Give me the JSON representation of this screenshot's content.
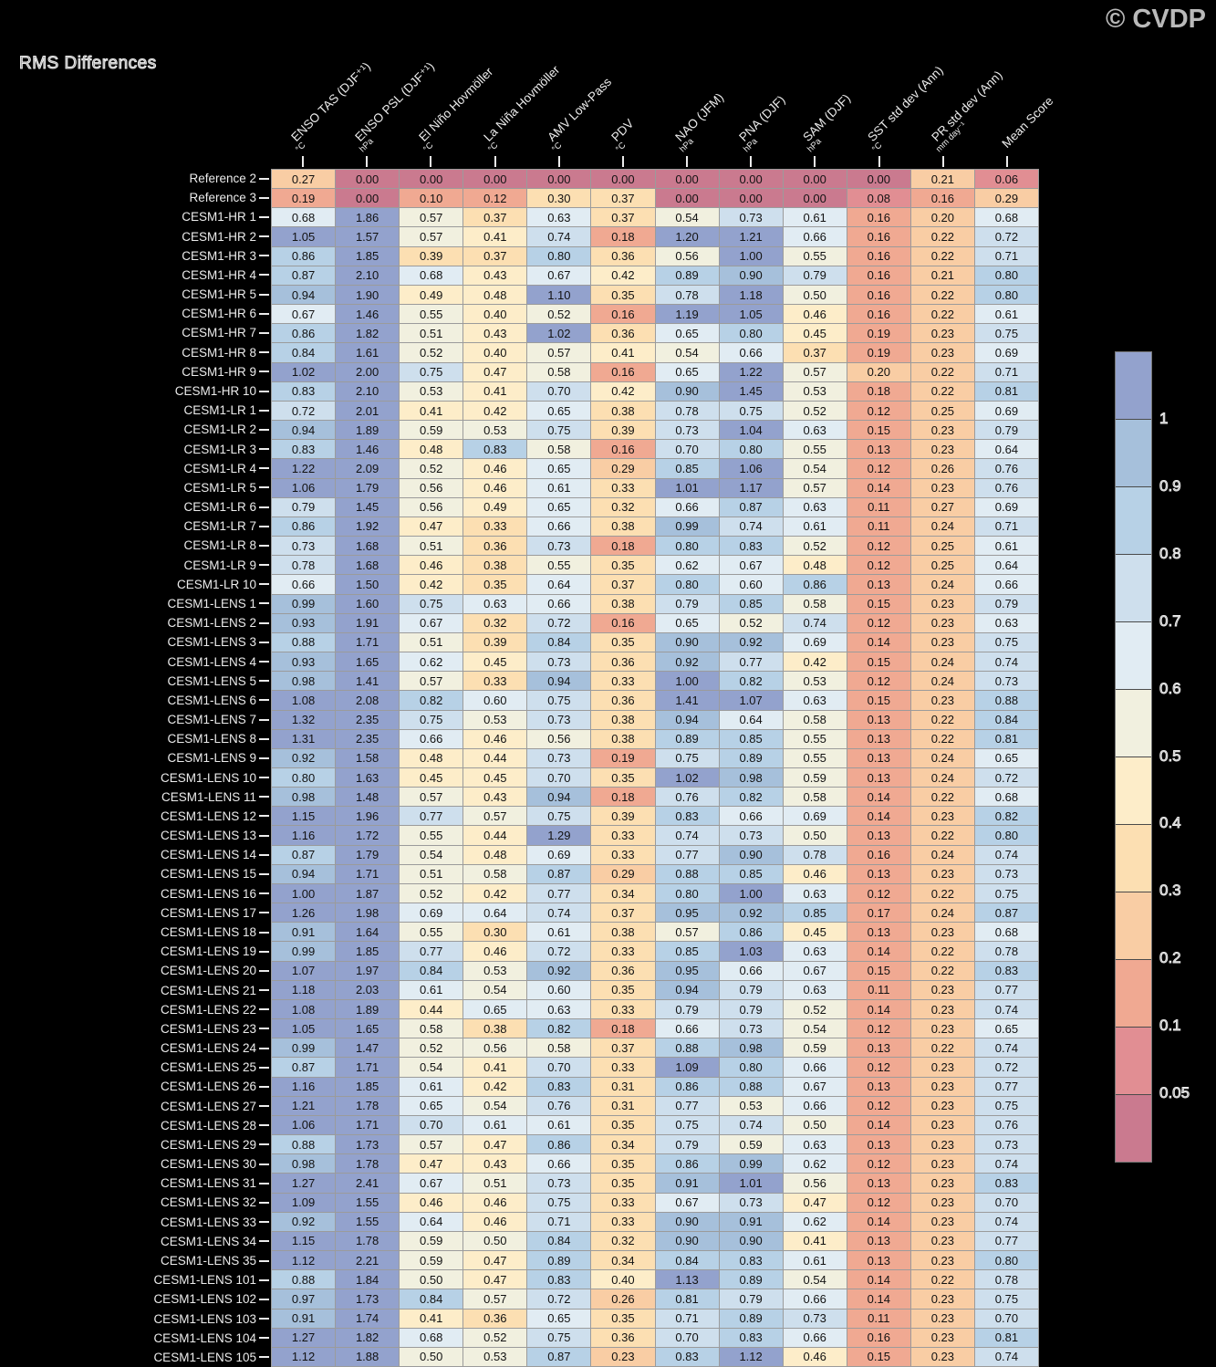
{
  "title": "RMS Differences",
  "watermark": "© CVDP",
  "chart_data": {
    "type": "heatmap",
    "title": "RMS Differences",
    "legend_position": "right",
    "columns": [
      {
        "label": "ENSO TAS (DJF⁺¹)",
        "unit": "°C"
      },
      {
        "label": "ENSO PSL (DJF⁺¹)",
        "unit": "hPa"
      },
      {
        "label": "El Niño Hovmöller",
        "unit": "°C"
      },
      {
        "label": "La Niña Hovmöller",
        "unit": "°C"
      },
      {
        "label": "AMV Low-Pass",
        "unit": "°C"
      },
      {
        "label": "PDV",
        "unit": "°C"
      },
      {
        "label": "NAO (JFM)",
        "unit": "hPa"
      },
      {
        "label": "PNA (DJF)",
        "unit": "hPa"
      },
      {
        "label": "SAM (DJF)",
        "unit": "hPa"
      },
      {
        "label": "SST std dev (Ann)",
        "unit": "°C"
      },
      {
        "label": "PR std dev (Ann)",
        "unit": "mm day⁻¹"
      },
      {
        "label": "Mean Score",
        "unit": ""
      }
    ],
    "rows": [
      "Reference 2",
      "Reference 3",
      "CESM1-HR 1",
      "CESM1-HR 2",
      "CESM1-HR 3",
      "CESM1-HR 4",
      "CESM1-HR 5",
      "CESM1-HR 6",
      "CESM1-HR 7",
      "CESM1-HR 8",
      "CESM1-HR 9",
      "CESM1-HR 10",
      "CESM1-LR 1",
      "CESM1-LR 2",
      "CESM1-LR 3",
      "CESM1-LR 4",
      "CESM1-LR 5",
      "CESM1-LR 6",
      "CESM1-LR 7",
      "CESM1-LR 8",
      "CESM1-LR 9",
      "CESM1-LR 10",
      "CESM1-LENS 1",
      "CESM1-LENS 2",
      "CESM1-LENS 3",
      "CESM1-LENS 4",
      "CESM1-LENS 5",
      "CESM1-LENS 6",
      "CESM1-LENS 7",
      "CESM1-LENS 8",
      "CESM1-LENS 9",
      "CESM1-LENS 10",
      "CESM1-LENS 11",
      "CESM1-LENS 12",
      "CESM1-LENS 13",
      "CESM1-LENS 14",
      "CESM1-LENS 15",
      "CESM1-LENS 16",
      "CESM1-LENS 17",
      "CESM1-LENS 18",
      "CESM1-LENS 19",
      "CESM1-LENS 20",
      "CESM1-LENS 21",
      "CESM1-LENS 22",
      "CESM1-LENS 23",
      "CESM1-LENS 24",
      "CESM1-LENS 25",
      "CESM1-LENS 26",
      "CESM1-LENS 27",
      "CESM1-LENS 28",
      "CESM1-LENS 29",
      "CESM1-LENS 30",
      "CESM1-LENS 31",
      "CESM1-LENS 32",
      "CESM1-LENS 33",
      "CESM1-LENS 34",
      "CESM1-LENS 35",
      "CESM1-LENS 101",
      "CESM1-LENS 102",
      "CESM1-LENS 103",
      "CESM1-LENS 104",
      "CESM1-LENS 105"
    ],
    "values": [
      [
        "0.27",
        "0.00",
        "0.00",
        "0.00",
        "0.00",
        "0.00",
        "0.00",
        "0.00",
        "0.00",
        "0.00",
        "0.21",
        "0.06"
      ],
      [
        "0.19",
        "0.00",
        "0.10",
        "0.12",
        "0.30",
        "0.37",
        "0.00",
        "0.00",
        "0.00",
        "0.08",
        "0.16",
        "0.29"
      ],
      [
        "0.68",
        "1.86",
        "0.57",
        "0.37",
        "0.63",
        "0.37",
        "0.54",
        "0.73",
        "0.61",
        "0.16",
        "0.20",
        "0.68"
      ],
      [
        "1.05",
        "1.57",
        "0.57",
        "0.41",
        "0.74",
        "0.18",
        "1.20",
        "1.21",
        "0.66",
        "0.16",
        "0.22",
        "0.72"
      ],
      [
        "0.86",
        "1.85",
        "0.39",
        "0.37",
        "0.80",
        "0.36",
        "0.56",
        "1.00",
        "0.55",
        "0.16",
        "0.22",
        "0.71"
      ],
      [
        "0.87",
        "2.10",
        "0.68",
        "0.43",
        "0.67",
        "0.42",
        "0.89",
        "0.90",
        "0.79",
        "0.16",
        "0.21",
        "0.80"
      ],
      [
        "0.94",
        "1.90",
        "0.49",
        "0.48",
        "1.10",
        "0.35",
        "0.78",
        "1.18",
        "0.50",
        "0.16",
        "0.22",
        "0.80"
      ],
      [
        "0.67",
        "1.46",
        "0.55",
        "0.40",
        "0.52",
        "0.16",
        "1.19",
        "1.05",
        "0.46",
        "0.16",
        "0.22",
        "0.61"
      ],
      [
        "0.86",
        "1.82",
        "0.51",
        "0.43",
        "1.02",
        "0.36",
        "0.65",
        "0.80",
        "0.45",
        "0.19",
        "0.23",
        "0.75"
      ],
      [
        "0.84",
        "1.61",
        "0.52",
        "0.40",
        "0.57",
        "0.41",
        "0.54",
        "0.66",
        "0.37",
        "0.19",
        "0.23",
        "0.69"
      ],
      [
        "1.02",
        "2.00",
        "0.75",
        "0.47",
        "0.58",
        "0.16",
        "0.65",
        "1.22",
        "0.57",
        "0.20",
        "0.22",
        "0.71"
      ],
      [
        "0.83",
        "2.10",
        "0.53",
        "0.41",
        "0.70",
        "0.42",
        "0.90",
        "1.45",
        "0.53",
        "0.18",
        "0.22",
        "0.81"
      ],
      [
        "0.72",
        "2.01",
        "0.41",
        "0.42",
        "0.65",
        "0.38",
        "0.78",
        "0.75",
        "0.52",
        "0.12",
        "0.25",
        "0.69"
      ],
      [
        "0.94",
        "1.89",
        "0.59",
        "0.53",
        "0.75",
        "0.39",
        "0.73",
        "1.04",
        "0.63",
        "0.15",
        "0.23",
        "0.79"
      ],
      [
        "0.83",
        "1.46",
        "0.48",
        "0.83",
        "0.58",
        "0.16",
        "0.70",
        "0.80",
        "0.55",
        "0.13",
        "0.23",
        "0.64"
      ],
      [
        "1.22",
        "2.09",
        "0.52",
        "0.46",
        "0.65",
        "0.29",
        "0.85",
        "1.06",
        "0.54",
        "0.12",
        "0.26",
        "0.76"
      ],
      [
        "1.06",
        "1.79",
        "0.56",
        "0.46",
        "0.61",
        "0.33",
        "1.01",
        "1.17",
        "0.57",
        "0.14",
        "0.23",
        "0.76"
      ],
      [
        "0.79",
        "1.45",
        "0.56",
        "0.49",
        "0.65",
        "0.32",
        "0.66",
        "0.87",
        "0.63",
        "0.11",
        "0.27",
        "0.69"
      ],
      [
        "0.86",
        "1.92",
        "0.47",
        "0.33",
        "0.66",
        "0.38",
        "0.99",
        "0.74",
        "0.61",
        "0.11",
        "0.24",
        "0.71"
      ],
      [
        "0.73",
        "1.68",
        "0.51",
        "0.36",
        "0.73",
        "0.18",
        "0.80",
        "0.83",
        "0.52",
        "0.12",
        "0.25",
        "0.61"
      ],
      [
        "0.78",
        "1.68",
        "0.46",
        "0.38",
        "0.55",
        "0.35",
        "0.62",
        "0.67",
        "0.48",
        "0.12",
        "0.25",
        "0.64"
      ],
      [
        "0.66",
        "1.50",
        "0.42",
        "0.35",
        "0.64",
        "0.37",
        "0.80",
        "0.60",
        "0.86",
        "0.13",
        "0.24",
        "0.66"
      ],
      [
        "0.99",
        "1.60",
        "0.75",
        "0.63",
        "0.66",
        "0.38",
        "0.79",
        "0.85",
        "0.58",
        "0.15",
        "0.23",
        "0.79"
      ],
      [
        "0.93",
        "1.91",
        "0.67",
        "0.32",
        "0.72",
        "0.16",
        "0.65",
        "0.52",
        "0.74",
        "0.12",
        "0.23",
        "0.63"
      ],
      [
        "0.88",
        "1.71",
        "0.51",
        "0.39",
        "0.84",
        "0.35",
        "0.90",
        "0.92",
        "0.69",
        "0.14",
        "0.23",
        "0.75"
      ],
      [
        "0.93",
        "1.65",
        "0.62",
        "0.45",
        "0.73",
        "0.36",
        "0.92",
        "0.77",
        "0.42",
        "0.15",
        "0.24",
        "0.74"
      ],
      [
        "0.98",
        "1.41",
        "0.57",
        "0.33",
        "0.94",
        "0.33",
        "1.00",
        "0.82",
        "0.53",
        "0.12",
        "0.24",
        "0.73"
      ],
      [
        "1.08",
        "2.08",
        "0.82",
        "0.60",
        "0.75",
        "0.36",
        "1.41",
        "1.07",
        "0.63",
        "0.15",
        "0.23",
        "0.88"
      ],
      [
        "1.32",
        "2.35",
        "0.75",
        "0.53",
        "0.73",
        "0.38",
        "0.94",
        "0.64",
        "0.58",
        "0.13",
        "0.22",
        "0.84"
      ],
      [
        "1.31",
        "2.35",
        "0.66",
        "0.46",
        "0.56",
        "0.38",
        "0.89",
        "0.85",
        "0.55",
        "0.13",
        "0.22",
        "0.81"
      ],
      [
        "0.92",
        "1.58",
        "0.48",
        "0.44",
        "0.73",
        "0.19",
        "0.75",
        "0.89",
        "0.55",
        "0.13",
        "0.24",
        "0.65"
      ],
      [
        "0.80",
        "1.63",
        "0.45",
        "0.45",
        "0.70",
        "0.35",
        "1.02",
        "0.98",
        "0.59",
        "0.13",
        "0.24",
        "0.72"
      ],
      [
        "0.98",
        "1.48",
        "0.57",
        "0.43",
        "0.94",
        "0.18",
        "0.76",
        "0.82",
        "0.58",
        "0.14",
        "0.22",
        "0.68"
      ],
      [
        "1.15",
        "1.96",
        "0.77",
        "0.57",
        "0.75",
        "0.39",
        "0.83",
        "0.66",
        "0.69",
        "0.14",
        "0.23",
        "0.82"
      ],
      [
        "1.16",
        "1.72",
        "0.55",
        "0.44",
        "1.29",
        "0.33",
        "0.74",
        "0.73",
        "0.50",
        "0.13",
        "0.22",
        "0.80"
      ],
      [
        "0.87",
        "1.79",
        "0.54",
        "0.48",
        "0.69",
        "0.33",
        "0.77",
        "0.90",
        "0.78",
        "0.16",
        "0.24",
        "0.74"
      ],
      [
        "0.94",
        "1.71",
        "0.51",
        "0.58",
        "0.87",
        "0.29",
        "0.88",
        "0.85",
        "0.46",
        "0.13",
        "0.23",
        "0.73"
      ],
      [
        "1.00",
        "1.87",
        "0.52",
        "0.42",
        "0.77",
        "0.34",
        "0.80",
        "1.00",
        "0.63",
        "0.12",
        "0.22",
        "0.75"
      ],
      [
        "1.26",
        "1.98",
        "0.69",
        "0.64",
        "0.74",
        "0.37",
        "0.95",
        "0.92",
        "0.85",
        "0.17",
        "0.24",
        "0.87"
      ],
      [
        "0.91",
        "1.64",
        "0.55",
        "0.30",
        "0.61",
        "0.38",
        "0.57",
        "0.86",
        "0.45",
        "0.13",
        "0.23",
        "0.68"
      ],
      [
        "0.99",
        "1.85",
        "0.77",
        "0.46",
        "0.72",
        "0.33",
        "0.85",
        "1.03",
        "0.63",
        "0.14",
        "0.22",
        "0.78"
      ],
      [
        "1.07",
        "1.97",
        "0.84",
        "0.53",
        "0.92",
        "0.36",
        "0.95",
        "0.66",
        "0.67",
        "0.15",
        "0.22",
        "0.83"
      ],
      [
        "1.18",
        "2.03",
        "0.61",
        "0.54",
        "0.60",
        "0.35",
        "0.94",
        "0.79",
        "0.63",
        "0.11",
        "0.23",
        "0.77"
      ],
      [
        "1.08",
        "1.89",
        "0.44",
        "0.65",
        "0.63",
        "0.33",
        "0.79",
        "0.79",
        "0.52",
        "0.14",
        "0.23",
        "0.74"
      ],
      [
        "1.05",
        "1.65",
        "0.58",
        "0.38",
        "0.82",
        "0.18",
        "0.66",
        "0.73",
        "0.54",
        "0.12",
        "0.23",
        "0.65"
      ],
      [
        "0.99",
        "1.47",
        "0.52",
        "0.56",
        "0.58",
        "0.37",
        "0.88",
        "0.98",
        "0.59",
        "0.13",
        "0.22",
        "0.74"
      ],
      [
        "0.87",
        "1.71",
        "0.54",
        "0.41",
        "0.70",
        "0.33",
        "1.09",
        "0.80",
        "0.66",
        "0.12",
        "0.23",
        "0.72"
      ],
      [
        "1.16",
        "1.85",
        "0.61",
        "0.42",
        "0.83",
        "0.31",
        "0.86",
        "0.88",
        "0.67",
        "0.13",
        "0.23",
        "0.77"
      ],
      [
        "1.21",
        "1.78",
        "0.65",
        "0.54",
        "0.76",
        "0.31",
        "0.77",
        "0.53",
        "0.66",
        "0.12",
        "0.23",
        "0.75"
      ],
      [
        "1.06",
        "1.71",
        "0.70",
        "0.61",
        "0.61",
        "0.35",
        "0.75",
        "0.74",
        "0.50",
        "0.14",
        "0.23",
        "0.76"
      ],
      [
        "0.88",
        "1.73",
        "0.57",
        "0.47",
        "0.86",
        "0.34",
        "0.79",
        "0.59",
        "0.63",
        "0.13",
        "0.23",
        "0.73"
      ],
      [
        "0.98",
        "1.78",
        "0.47",
        "0.43",
        "0.66",
        "0.35",
        "0.86",
        "0.99",
        "0.62",
        "0.12",
        "0.23",
        "0.74"
      ],
      [
        "1.27",
        "2.41",
        "0.67",
        "0.51",
        "0.73",
        "0.35",
        "0.91",
        "1.01",
        "0.56",
        "0.13",
        "0.23",
        "0.83"
      ],
      [
        "1.09",
        "1.55",
        "0.46",
        "0.46",
        "0.75",
        "0.33",
        "0.67",
        "0.73",
        "0.47",
        "0.12",
        "0.23",
        "0.70"
      ],
      [
        "0.92",
        "1.55",
        "0.64",
        "0.46",
        "0.71",
        "0.33",
        "0.90",
        "0.91",
        "0.62",
        "0.14",
        "0.23",
        "0.74"
      ],
      [
        "1.15",
        "1.78",
        "0.59",
        "0.50",
        "0.84",
        "0.32",
        "0.90",
        "0.90",
        "0.41",
        "0.13",
        "0.23",
        "0.77"
      ],
      [
        "1.12",
        "2.21",
        "0.59",
        "0.47",
        "0.89",
        "0.34",
        "0.84",
        "0.83",
        "0.61",
        "0.13",
        "0.23",
        "0.80"
      ],
      [
        "0.88",
        "1.84",
        "0.50",
        "0.47",
        "0.83",
        "0.40",
        "1.13",
        "0.89",
        "0.54",
        "0.14",
        "0.22",
        "0.78"
      ],
      [
        "0.97",
        "1.73",
        "0.84",
        "0.57",
        "0.72",
        "0.26",
        "0.81",
        "0.79",
        "0.66",
        "0.14",
        "0.23",
        "0.75"
      ],
      [
        "0.91",
        "1.74",
        "0.41",
        "0.36",
        "0.65",
        "0.35",
        "0.71",
        "0.89",
        "0.73",
        "0.11",
        "0.23",
        "0.70"
      ],
      [
        "1.27",
        "1.82",
        "0.68",
        "0.52",
        "0.75",
        "0.36",
        "0.70",
        "0.83",
        "0.66",
        "0.16",
        "0.23",
        "0.81"
      ],
      [
        "1.12",
        "1.88",
        "0.50",
        "0.53",
        "0.87",
        "0.23",
        "0.83",
        "1.12",
        "0.46",
        "0.15",
        "0.23",
        "0.74"
      ]
    ],
    "colorscale": {
      "thresholds": [
        0.05,
        0.1,
        0.2,
        0.3,
        0.4,
        0.5,
        0.6,
        0.7,
        0.8,
        0.9,
        1
      ],
      "colors": [
        "#ca7a8f",
        "#e18e93",
        "#f0a992",
        "#f9cda4",
        "#fcdfb2",
        "#fdedc9",
        "#f1f0df",
        "#e1ecf3",
        "#cedfed",
        "#b7d1e6",
        "#a6c0db",
        "#93a2cd"
      ],
      "tick_labels": [
        "1",
        "0.9",
        "0.8",
        "0.7",
        "0.6",
        "0.5",
        "0.4",
        "0.3",
        "0.2",
        "0.1",
        "0.05"
      ],
      "grid_line_color": "#9b9b9b"
    }
  }
}
